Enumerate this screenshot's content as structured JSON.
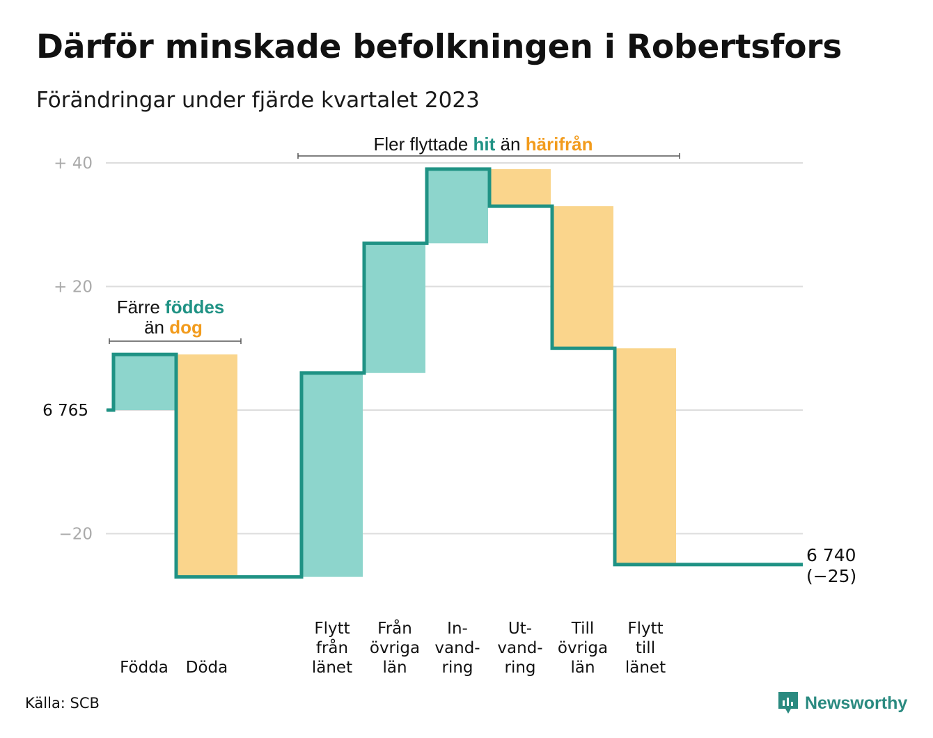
{
  "title": "Därför minskade befolkningen i Robertsfors",
  "subtitle": "Förändringar under fjärde kvartalet 2023",
  "source": "Källa: SCB",
  "logo_text": "Newsworthy",
  "colors": {
    "increase_fill": "#8dd5cc",
    "decrease_fill": "#fad58c",
    "line": "#1f9284",
    "teal_text": "#1f9284",
    "orange_text": "#f29b1c",
    "grid": "#dddddd",
    "tick": "#aaaaaa"
  },
  "chart_data": {
    "type": "waterfall",
    "baseline": 6765,
    "start_label": "6 765",
    "end_value": 6740,
    "end_label_line1": "6 740",
    "end_label_line2": "(−25)",
    "y_ticks": [
      {
        "value": 40,
        "label": "+  40"
      },
      {
        "value": 20,
        "label": "+  20"
      },
      {
        "value": -20,
        "label": "−20"
      }
    ],
    "ylim": [
      -30,
      40
    ],
    "steps": [
      {
        "label": [
          "",
          "",
          "Födda"
        ],
        "change": 9,
        "kind": "increase"
      },
      {
        "label": [
          "",
          "",
          "Döda"
        ],
        "change": -36,
        "kind": "decrease"
      },
      {
        "label": [
          "",
          "",
          ""
        ],
        "change": 0,
        "kind": "gap"
      },
      {
        "label": [
          "Flytt",
          "från",
          "länet"
        ],
        "change": 33,
        "kind": "increase"
      },
      {
        "label": [
          "Från",
          "övriga",
          "län"
        ],
        "change": 21,
        "kind": "increase"
      },
      {
        "label": [
          "In-",
          "vand-",
          "ring"
        ],
        "change": 12,
        "kind": "increase"
      },
      {
        "label": [
          "Ut-",
          "vand-",
          "ring"
        ],
        "change": -6,
        "kind": "decrease"
      },
      {
        "label": [
          "Till",
          "övriga",
          "län"
        ],
        "change": -23,
        "kind": "decrease"
      },
      {
        "label": [
          "Flytt",
          "till",
          "länet"
        ],
        "change": -35,
        "kind": "decrease"
      }
    ],
    "annotations": [
      {
        "id": "births",
        "parts": [
          "Färre ",
          "föddes",
          "än ",
          "dog"
        ]
      },
      {
        "id": "migration",
        "parts": [
          "Fler flyttade ",
          "hit",
          " än ",
          "härifrån"
        ]
      }
    ]
  }
}
